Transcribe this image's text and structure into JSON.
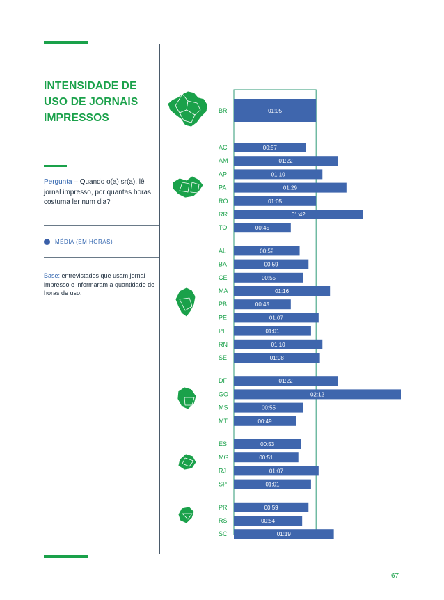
{
  "title": "INTENSIDADE DE USO DE JORNAIS IMPRESSOS",
  "question": {
    "label": "Pergunta",
    "text": " – Quando o(a) sr(a). lê jornal impresso, por quantas horas costuma ler num dia?"
  },
  "legend": {
    "label": "MÉDIA (EM HORAS)"
  },
  "base": {
    "label": "Base:",
    "text": " entrevistados que usam jornal impresso e informaram a quantidade de horas de uso."
  },
  "page_number": "67",
  "colors": {
    "green": "#1aa14a",
    "bar": "#3f66ad"
  },
  "regions": [
    "Brasil",
    "Norte",
    "Nordeste",
    "Centro-Oeste",
    "Sudeste",
    "Sul"
  ],
  "chart_data": {
    "type": "bar",
    "orientation": "horizontal",
    "unit": "hh:mm",
    "xlim_minutes": [
      0,
      132
    ],
    "groups": [
      {
        "region": "Brasil",
        "categories": [
          "BR"
        ],
        "labels": [
          "01:05"
        ],
        "values": [
          65
        ]
      },
      {
        "region": "Norte",
        "categories": [
          "AC",
          "AM",
          "AP",
          "PA",
          "RO",
          "RR",
          "TO"
        ],
        "labels": [
          "00:57",
          "01:22",
          "01:10",
          "01:29",
          "01:05",
          "01:42",
          "00:45"
        ],
        "values": [
          57,
          82,
          70,
          89,
          65,
          102,
          45
        ]
      },
      {
        "region": "Nordeste",
        "categories": [
          "AL",
          "BA",
          "CE",
          "MA",
          "PB",
          "PE",
          "PI",
          "RN",
          "SE"
        ],
        "labels": [
          "00:52",
          "00:59",
          "00:55",
          "01:16",
          "00:45",
          "01:07",
          "01:01",
          "01:10",
          "01:08"
        ],
        "values": [
          52,
          59,
          55,
          76,
          45,
          67,
          61,
          70,
          68
        ]
      },
      {
        "region": "Centro-Oeste",
        "categories": [
          "DF",
          "GO",
          "MS",
          "MT"
        ],
        "labels": [
          "01:22",
          "02:12",
          "00:55",
          "00:49"
        ],
        "values": [
          82,
          132,
          55,
          49
        ]
      },
      {
        "region": "Sudeste",
        "categories": [
          "ES",
          "MG",
          "RJ",
          "SP"
        ],
        "labels": [
          "00:53",
          "00:51",
          "01:07",
          "01:01"
        ],
        "values": [
          53,
          51,
          67,
          61
        ]
      },
      {
        "region": "Sul",
        "categories": [
          "PR",
          "RS",
          "SC"
        ],
        "labels": [
          "00:59",
          "00:54",
          "01:19"
        ],
        "values": [
          59,
          54,
          79
        ]
      }
    ]
  }
}
